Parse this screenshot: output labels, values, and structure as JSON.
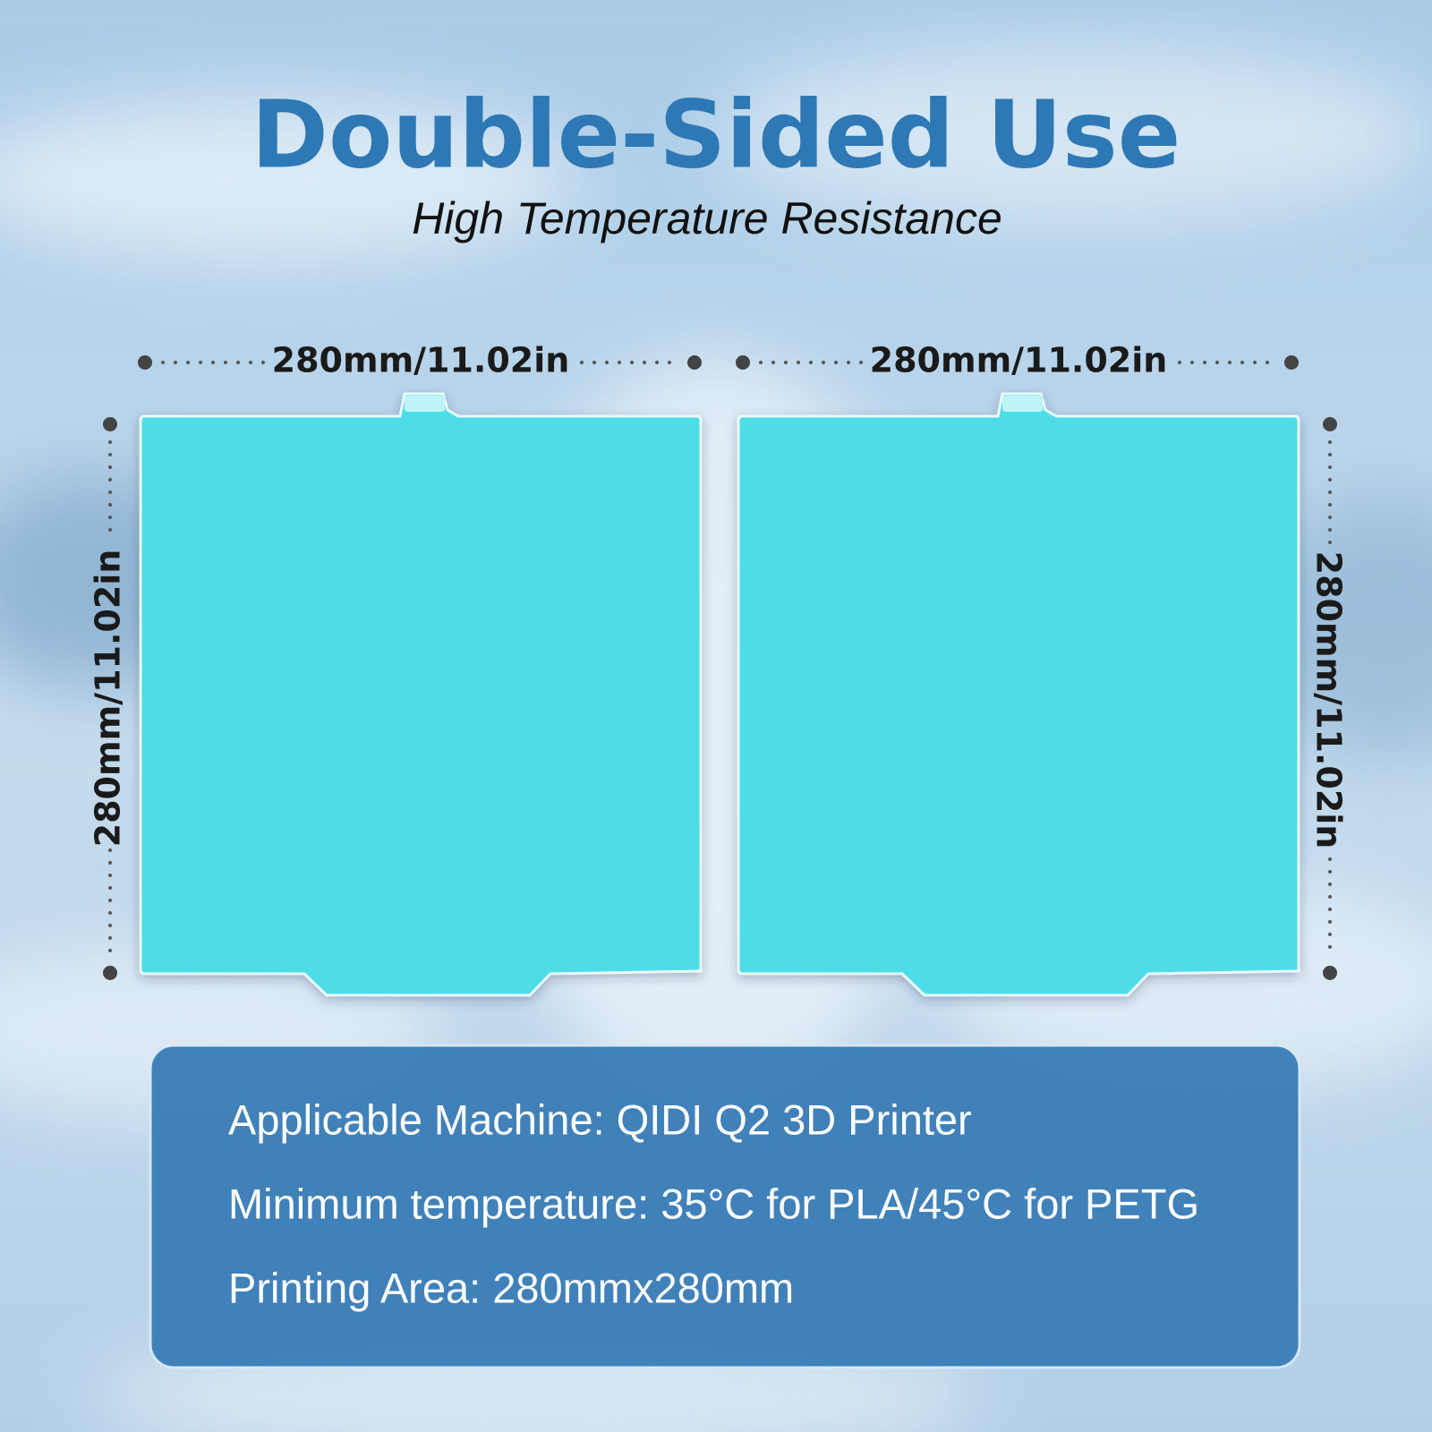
{
  "header": {
    "title": "Double-Sided Use",
    "subtitle": "High Temperature Resistance"
  },
  "plates": [
    {
      "width_label": "280mm/11.02in",
      "height_label": "280mm/11.02in"
    },
    {
      "width_label": "280mm/11.02in",
      "height_label": "280mm/11.02in"
    }
  ],
  "specs": [
    "Applicable Machine: QIDI Q2 3D Printer",
    "Minimum temperature: 35°C for PLA/45°C for PETG",
    "Printing Area: 280mmx280mm"
  ]
}
